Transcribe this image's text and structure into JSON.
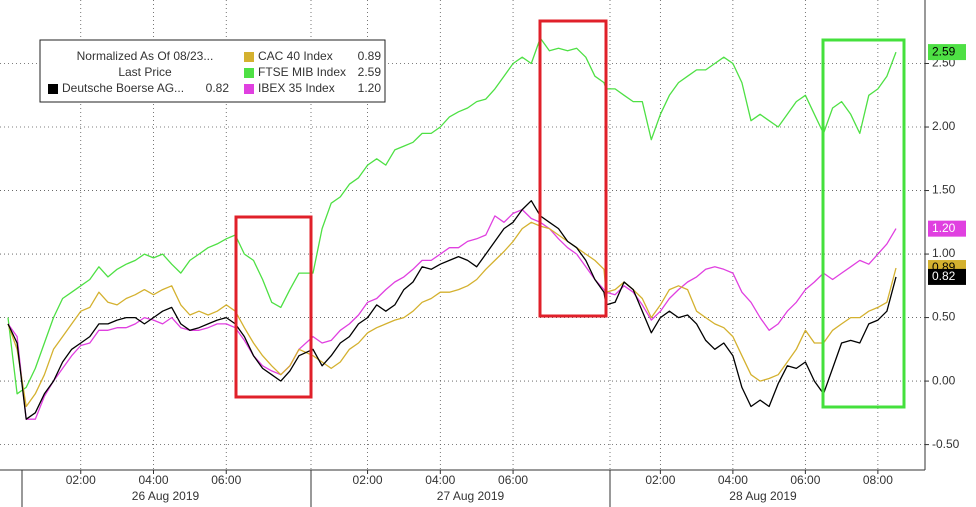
{
  "chart_data": {
    "type": "line",
    "legend_title": "Normalized As Of 08/23...",
    "legend_subtitle": "Last Price",
    "days": [
      "26 Aug 2019",
      "27 Aug 2019",
      "28 Aug 2019"
    ],
    "categories": [
      null,
      null,
      null,
      null,
      null,
      null,
      null,
      null,
      "02:00",
      null,
      null,
      null,
      null,
      null,
      null,
      null,
      "04:00",
      null,
      null,
      null,
      null,
      null,
      null,
      null,
      "06:00",
      null,
      null,
      null,
      null,
      null,
      null,
      null,
      null,
      null,
      null,
      null,
      null,
      null,
      null,
      "02:00",
      null,
      null,
      null,
      null,
      null,
      null,
      null,
      "04:00",
      null,
      null,
      null,
      null,
      null,
      null,
      null,
      "06:00",
      null,
      null,
      null,
      null,
      null,
      null,
      null,
      null,
      null,
      null,
      null,
      null,
      null,
      null,
      null,
      null,
      "02:00",
      null,
      null,
      null,
      null,
      null,
      null,
      null,
      "04:00",
      null,
      null,
      null,
      null,
      null,
      null,
      null,
      "06:00",
      null,
      null,
      null,
      null,
      null,
      null,
      null,
      "08:00",
      null,
      null
    ],
    "ylim": [
      -0.7,
      3.0
    ],
    "yticks": [
      {
        "value": -0.5,
        "label": "-0.50"
      },
      {
        "value": 0,
        "label": "0.00"
      },
      {
        "value": 0.5,
        "label": "0.50"
      },
      {
        "value": 1,
        "label": "1.00"
      },
      {
        "value": 1.5,
        "label": "1.50"
      },
      {
        "value": 2,
        "label": "2.00"
      },
      {
        "value": 2.5,
        "label": "2.50"
      }
    ],
    "grid": true,
    "series": [
      {
        "name": "Deutsche Boerse AG...",
        "color": "#000000",
        "last_label": "0.82",
        "values": [
          0.45,
          0.3,
          -0.3,
          -0.25,
          -0.1,
          0.0,
          0.15,
          0.25,
          0.3,
          0.35,
          0.45,
          0.45,
          0.48,
          0.5,
          0.5,
          0.45,
          0.5,
          0.55,
          0.58,
          0.45,
          0.4,
          0.42,
          0.45,
          0.48,
          0.5,
          0.45,
          0.35,
          0.2,
          0.1,
          0.05,
          0.0,
          0.08,
          0.2,
          0.25,
          0.12,
          0.2,
          0.3,
          0.35,
          0.45,
          0.5,
          0.6,
          0.55,
          0.6,
          0.72,
          0.78,
          0.9,
          0.88,
          0.92,
          0.95,
          0.98,
          0.95,
          0.9,
          1.0,
          1.1,
          1.2,
          1.25,
          1.35,
          1.42,
          1.3,
          1.25,
          1.2,
          1.1,
          1.05,
          0.95,
          0.8,
          0.7,
          0.6,
          0.62,
          0.78,
          0.72,
          0.55,
          0.38,
          0.5,
          0.55,
          0.5,
          0.52,
          0.45,
          0.32,
          0.25,
          0.3,
          0.2,
          -0.05,
          -0.2,
          -0.15,
          -0.2,
          -0.02,
          0.12,
          0.1,
          0.15,
          0.0,
          -0.1,
          0.1,
          0.3,
          0.32,
          0.3,
          0.45,
          0.48,
          0.55,
          0.82
        ]
      },
      {
        "name": "CAC 40 Index",
        "color": "#d4b12f",
        "last_label": "0.89",
        "values": [
          0.45,
          0.25,
          -0.2,
          -0.1,
          0.05,
          0.25,
          0.35,
          0.45,
          0.55,
          0.58,
          0.7,
          0.62,
          0.6,
          0.65,
          0.68,
          0.72,
          0.68,
          0.72,
          0.75,
          0.6,
          0.52,
          0.55,
          0.52,
          0.55,
          0.6,
          0.55,
          0.42,
          0.3,
          0.2,
          0.12,
          0.05,
          0.12,
          0.25,
          0.2,
          0.15,
          0.1,
          0.15,
          0.25,
          0.3,
          0.38,
          0.42,
          0.45,
          0.48,
          0.5,
          0.55,
          0.62,
          0.65,
          0.7,
          0.7,
          0.72,
          0.75,
          0.8,
          0.88,
          0.95,
          1.02,
          1.1,
          1.2,
          1.25,
          1.22,
          1.2,
          1.15,
          1.1,
          1.05,
          1.0,
          0.95,
          0.88,
          0.7,
          0.72,
          0.78,
          0.72,
          0.65,
          0.5,
          0.6,
          0.72,
          0.75,
          0.72,
          0.55,
          0.5,
          0.45,
          0.42,
          0.35,
          0.2,
          0.05,
          0.0,
          0.02,
          0.05,
          0.15,
          0.25,
          0.4,
          0.3,
          0.3,
          0.4,
          0.45,
          0.5,
          0.5,
          0.55,
          0.58,
          0.62,
          0.89
        ]
      },
      {
        "name": "FTSE MIB Index",
        "color": "#4ee044",
        "last_label": "2.59",
        "values": [
          0.5,
          -0.1,
          -0.05,
          0.1,
          0.3,
          0.5,
          0.65,
          0.7,
          0.75,
          0.8,
          0.9,
          0.82,
          0.88,
          0.92,
          0.95,
          1.0,
          0.97,
          1.0,
          0.92,
          0.85,
          0.95,
          1.0,
          1.05,
          1.08,
          1.12,
          1.15,
          1.0,
          0.95,
          0.8,
          0.62,
          0.58,
          0.72,
          0.85,
          0.85,
          1.2,
          1.4,
          1.45,
          1.55,
          1.6,
          1.7,
          1.75,
          1.7,
          1.82,
          1.85,
          1.88,
          1.95,
          1.95,
          2.0,
          2.08,
          2.12,
          2.15,
          2.2,
          2.22,
          2.3,
          2.4,
          2.5,
          2.55,
          2.5,
          2.7,
          2.6,
          2.62,
          2.6,
          2.62,
          2.55,
          2.4,
          2.35,
          2.3,
          2.3,
          2.25,
          2.2,
          2.2,
          1.9,
          2.1,
          2.25,
          2.35,
          2.4,
          2.45,
          2.45,
          2.5,
          2.55,
          2.5,
          2.35,
          2.05,
          2.1,
          2.05,
          2.0,
          2.1,
          2.2,
          2.25,
          2.1,
          1.95,
          2.15,
          2.2,
          2.1,
          1.95,
          2.25,
          2.3,
          2.4,
          2.59
        ]
      },
      {
        "name": "IBEX 35 Index",
        "color": "#e040e0",
        "last_label": "1.20",
        "values": [
          0.45,
          0.35,
          -0.3,
          -0.3,
          -0.12,
          0.0,
          0.1,
          0.2,
          0.28,
          0.3,
          0.4,
          0.4,
          0.42,
          0.42,
          0.45,
          0.5,
          0.48,
          0.45,
          0.5,
          0.42,
          0.4,
          0.4,
          0.42,
          0.45,
          0.45,
          0.42,
          0.32,
          0.2,
          0.12,
          0.08,
          0.05,
          0.12,
          0.25,
          0.35,
          0.3,
          0.32,
          0.4,
          0.45,
          0.52,
          0.62,
          0.65,
          0.72,
          0.78,
          0.82,
          0.88,
          0.95,
          0.95,
          1.0,
          1.05,
          1.05,
          1.1,
          1.12,
          1.15,
          1.3,
          1.25,
          1.32,
          1.35,
          1.28,
          1.25,
          1.2,
          1.12,
          1.05,
          1.0,
          0.9,
          0.8,
          0.72,
          0.7,
          0.68,
          0.75,
          0.7,
          0.6,
          0.48,
          0.55,
          0.65,
          0.72,
          0.78,
          0.82,
          0.88,
          0.9,
          0.88,
          0.85,
          0.7,
          0.62,
          0.5,
          0.4,
          0.45,
          0.55,
          0.62,
          0.72,
          0.78,
          0.85,
          0.8,
          0.85,
          0.9,
          0.95,
          0.92,
          1.0,
          1.08,
          1.2
        ]
      }
    ]
  }
}
